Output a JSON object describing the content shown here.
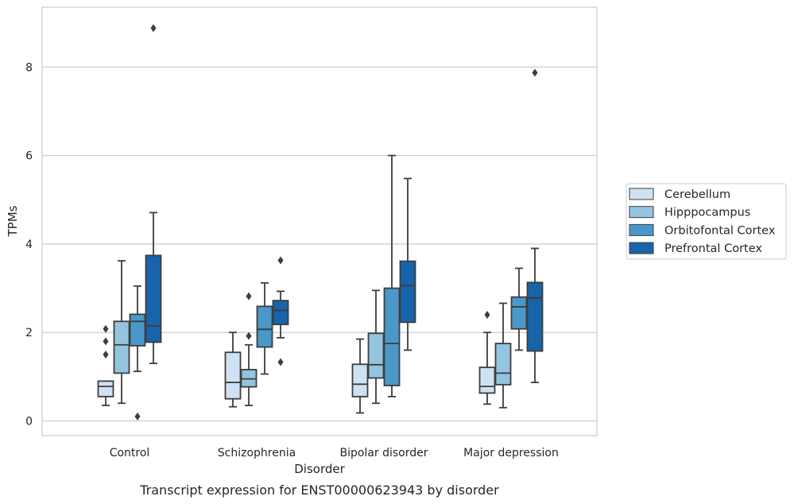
{
  "chart_data": {
    "type": "box",
    "xlabel": "Disorder",
    "ylabel": "TPMs",
    "caption": "Transcript expression for ENST00000623943 by disorder",
    "ylim": [
      -0.3,
      9.4
    ],
    "yticks": [
      0,
      2,
      4,
      6,
      8
    ],
    "grid": "horizontal",
    "legend_position": "right",
    "categories": [
      "Control",
      "Schizophrenia",
      "Bipolar disorder",
      "Major depression"
    ],
    "series": [
      {
        "name": "Cerebellum",
        "color": "#d0e1f2",
        "boxes": [
          {
            "whislo": 0.35,
            "q1": 0.55,
            "med": 0.78,
            "q3": 0.9,
            "whishi": 0.9,
            "fliers": [
              2.08,
              1.8,
              1.5
            ]
          },
          {
            "whislo": 0.32,
            "q1": 0.5,
            "med": 0.87,
            "q3": 1.55,
            "whishi": 2.0,
            "fliers": []
          },
          {
            "whislo": 0.18,
            "q1": 0.55,
            "med": 0.83,
            "q3": 1.28,
            "whishi": 1.85,
            "fliers": []
          },
          {
            "whislo": 0.38,
            "q1": 0.63,
            "med": 0.78,
            "q3": 1.21,
            "whishi": 2.0,
            "fliers": [
              2.4
            ]
          }
        ]
      },
      {
        "name": "Hipppocampus",
        "color": "#94c4df",
        "boxes": [
          {
            "whislo": 0.4,
            "q1": 1.08,
            "med": 1.72,
            "q3": 2.25,
            "whishi": 3.62,
            "fliers": []
          },
          {
            "whislo": 0.35,
            "q1": 0.77,
            "med": 0.95,
            "q3": 1.16,
            "whishi": 1.72,
            "fliers": [
              1.92,
              2.82
            ]
          },
          {
            "whislo": 0.4,
            "q1": 0.97,
            "med": 1.27,
            "q3": 1.98,
            "whishi": 2.95,
            "fliers": []
          },
          {
            "whislo": 0.3,
            "q1": 0.82,
            "med": 1.08,
            "q3": 1.75,
            "whishi": 2.66,
            "fliers": []
          }
        ]
      },
      {
        "name": "Orbitofontal Cortex",
        "color": "#4a98c9",
        "boxes": [
          {
            "whislo": 1.12,
            "q1": 1.7,
            "med": 2.25,
            "q3": 2.41,
            "whishi": 3.05,
            "fliers": [
              0.1
            ]
          },
          {
            "whislo": 1.06,
            "q1": 1.67,
            "med": 2.07,
            "q3": 2.59,
            "whishi": 3.12,
            "fliers": []
          },
          {
            "whislo": 0.55,
            "q1": 0.8,
            "med": 1.75,
            "q3": 3.0,
            "whishi": 6.0,
            "fliers": []
          },
          {
            "whislo": 1.6,
            "q1": 2.08,
            "med": 2.58,
            "q3": 2.8,
            "whishi": 3.45,
            "fliers": []
          }
        ]
      },
      {
        "name": "Prefrontal Cortex",
        "color": "#1764ab",
        "boxes": [
          {
            "whislo": 1.3,
            "q1": 1.78,
            "med": 2.15,
            "q3": 3.74,
            "whishi": 4.71,
            "fliers": [
              8.88
            ]
          },
          {
            "whislo": 1.88,
            "q1": 2.18,
            "med": 2.5,
            "q3": 2.72,
            "whishi": 2.93,
            "fliers": [
              3.63,
              1.33
            ]
          },
          {
            "whislo": 1.6,
            "q1": 2.23,
            "med": 3.06,
            "q3": 3.61,
            "whishi": 5.48,
            "fliers": []
          },
          {
            "whislo": 0.87,
            "q1": 1.58,
            "med": 2.78,
            "q3": 3.13,
            "whishi": 3.9,
            "fliers": [
              7.87
            ]
          }
        ]
      }
    ]
  }
}
